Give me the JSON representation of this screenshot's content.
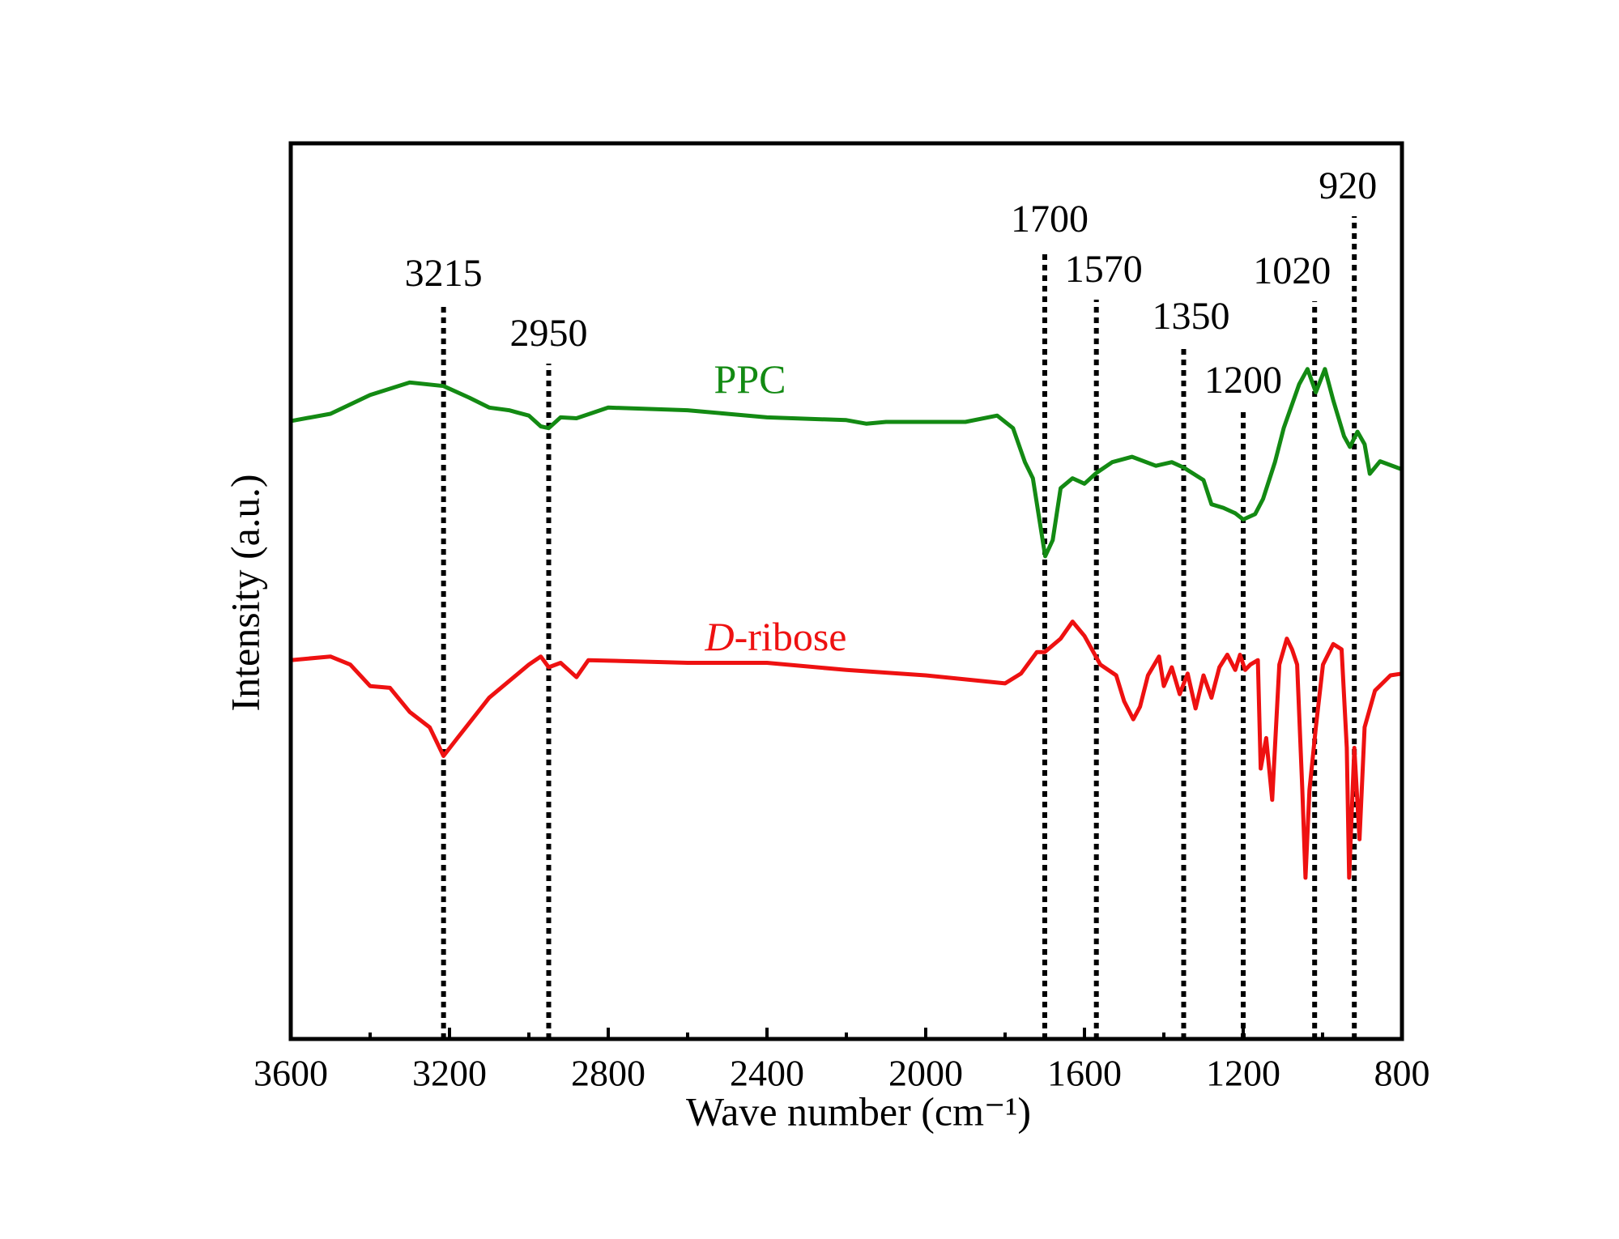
{
  "chart_data": {
    "type": "line",
    "xlabel": "Wave number (cm⁻¹)",
    "ylabel": "Intensity (a.u.)",
    "xlim": [
      3600,
      800
    ],
    "xticks": [
      3600,
      3200,
      2800,
      2400,
      2000,
      1600,
      1200,
      800
    ],
    "xminorticks": [
      3400,
      3000,
      2600,
      2200,
      1800,
      1400,
      1000
    ],
    "ylim": [
      0,
      100
    ],
    "grid": false,
    "vlines": [
      3215,
      2950,
      1700,
      1570,
      1350,
      1200,
      1020,
      920
    ],
    "series": [
      {
        "name": "PPC",
        "color": "#138a13",
        "x": [
          3600,
          3500,
          3400,
          3300,
          3215,
          3150,
          3100,
          3050,
          3000,
          2970,
          2950,
          2920,
          2880,
          2800,
          2600,
          2400,
          2200,
          2150,
          2100,
          1900,
          1820,
          1780,
          1750,
          1730,
          1699,
          1680,
          1660,
          1630,
          1600,
          1570,
          1530,
          1480,
          1420,
          1380,
          1350,
          1300,
          1280,
          1250,
          1220,
          1200,
          1170,
          1150,
          1120,
          1098,
          1059,
          1038,
          1017,
          994,
          973,
          946,
          931,
          912,
          894,
          881,
          855,
          800
        ],
        "values": [
          69.0,
          69.8,
          71.9,
          73.3,
          72.9,
          71.6,
          70.5,
          70.2,
          69.6,
          68.4,
          68.2,
          69.4,
          69.3,
          70.5,
          70.2,
          69.4,
          69.1,
          68.7,
          68.9,
          68.9,
          69.6,
          68.2,
          64.4,
          62.6,
          53.9,
          55.7,
          61.5,
          62.6,
          62.0,
          63.2,
          64.4,
          65.0,
          64.0,
          64.4,
          63.8,
          62.4,
          59.7,
          59.3,
          58.7,
          58.0,
          58.6,
          60.3,
          64.4,
          68.2,
          73.1,
          74.8,
          72.2,
          74.8,
          71.3,
          67.3,
          66.1,
          67.8,
          66.4,
          63.1,
          64.5,
          63.6
        ]
      },
      {
        "name": "D-ribose",
        "color": "#ee1111",
        "x": [
          3600,
          3500,
          3450,
          3400,
          3350,
          3300,
          3250,
          3215,
          3180,
          3100,
          3000,
          2970,
          2950,
          2920,
          2900,
          2880,
          2850,
          2600,
          2400,
          2200,
          2000,
          1800,
          1760,
          1720,
          1700,
          1660,
          1630,
          1600,
          1560,
          1520,
          1500,
          1477,
          1460,
          1440,
          1412,
          1400,
          1380,
          1360,
          1340,
          1320,
          1300,
          1280,
          1260,
          1240,
          1220,
          1208,
          1195,
          1182,
          1163,
          1156,
          1142,
          1127,
          1109,
          1090,
          1077,
          1064,
          1051,
          1043,
          1033,
          1017,
          999,
          973,
          952,
          939,
          933,
          920,
          907,
          894,
          868,
          829,
          800
        ],
        "values": [
          42.3,
          42.7,
          41.8,
          39.4,
          39.2,
          36.5,
          34.8,
          31.6,
          33.6,
          38.1,
          41.8,
          42.7,
          41.5,
          42.0,
          41.2,
          40.4,
          42.3,
          42.0,
          42.0,
          41.2,
          40.6,
          39.7,
          40.8,
          43.2,
          43.2,
          44.7,
          46.6,
          45.0,
          41.8,
          40.6,
          37.7,
          35.7,
          37.1,
          40.6,
          42.7,
          39.4,
          41.5,
          38.5,
          40.8,
          36.9,
          40.6,
          38.1,
          41.5,
          42.9,
          41.2,
          42.9,
          41.2,
          41.8,
          42.3,
          30.2,
          33.6,
          26.7,
          41.8,
          44.7,
          43.5,
          41.8,
          27.8,
          18.0,
          27.8,
          34.8,
          41.8,
          44.1,
          43.5,
          32.5,
          18.0,
          32.5,
          22.3,
          34.8,
          38.9,
          40.6,
          40.8
        ]
      }
    ]
  }
}
